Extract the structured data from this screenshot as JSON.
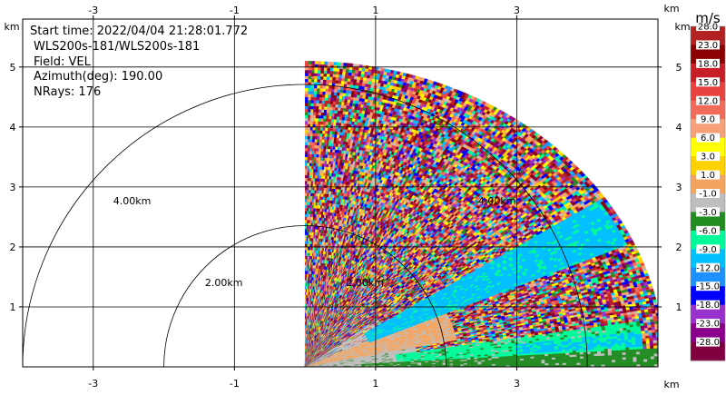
{
  "chart_data": {
    "type": "heatmap",
    "subtype": "radar PPI sector (doppler lidar radial velocity)",
    "annotations": {
      "start_time": "Start time: 2022/04/04 21:28:01.772",
      "instrument": "WLS200s-181/WLS200s-181",
      "field": "Field: VEL",
      "azimuth": "Azimuth(deg): 190.00",
      "nrays": "NRays: 176"
    },
    "x_axis": {
      "unit_label": "km",
      "range": [
        -4.0,
        5.0
      ],
      "ticks": [
        -3,
        -1,
        1,
        3
      ],
      "tick_labels": [
        "-3",
        "-1",
        "1",
        "3"
      ]
    },
    "y_axis": {
      "unit_label": "km",
      "range": [
        0.0,
        5.8
      ],
      "ticks": [
        1,
        2,
        3,
        4,
        5
      ],
      "tick_labels": [
        "1",
        "2",
        "3",
        "4",
        "5"
      ]
    },
    "range_rings": [
      {
        "radius_km": 2.0,
        "label": "2.00km"
      },
      {
        "radius_km": 4.0,
        "label": "4.00km"
      }
    ],
    "sector": {
      "theta_start_deg": 0,
      "theta_end_deg": 90,
      "max_range_km": 5.1
    },
    "colorbar": {
      "unit": "m/s",
      "levels": [
        {
          "label": "28.0",
          "color": "#b22222"
        },
        {
          "label": "23.0",
          "color": "#8b0000"
        },
        {
          "label": "18.0",
          "color": "#c81e28"
        },
        {
          "label": "15.0",
          "color": "#e8433f"
        },
        {
          "label": "12.0",
          "color": "#f26a5a"
        },
        {
          "label": "9.0",
          "color": "#f7a07a"
        },
        {
          "label": "6.0",
          "color": "#ffff00"
        },
        {
          "label": "3.0",
          "color": "#ffd000"
        },
        {
          "label": "1.0",
          "color": "#f4a460"
        },
        {
          "label": "-1.0",
          "color": "#bebebe"
        },
        {
          "label": "-3.0",
          "color": "#228b22"
        },
        {
          "label": "-6.0",
          "color": "#00fa9a"
        },
        {
          "label": "-9.0",
          "color": "#00bfff"
        },
        {
          "label": "-12.0",
          "color": "#1e90ff"
        },
        {
          "label": "-15.0",
          "color": "#0000ff"
        },
        {
          "label": "-18.0",
          "color": "#9932cc"
        },
        {
          "label": "-23.0",
          "color": "#8b008b"
        },
        {
          "label": "-28.0",
          "color": "#800040"
        }
      ],
      "bottom_color": "#800040"
    },
    "grid": true
  }
}
